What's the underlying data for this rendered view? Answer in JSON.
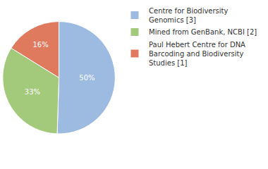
{
  "chart_data": {
    "type": "pie",
    "categories": [
      "Centre for Biodiversity Genomics [3]",
      "Mined from GenBank, NCBI [2]",
      "Paul Hebert Centre for DNA Barcoding and Biodiversity Studies [1]"
    ],
    "values": [
      50,
      33,
      16
    ],
    "value_labels": [
      "50%",
      "33%",
      "16%"
    ],
    "colors": [
      "#9dbae0",
      "#a3c97a",
      "#e07a5f"
    ],
    "data_labels": true,
    "legend": "upper right"
  }
}
